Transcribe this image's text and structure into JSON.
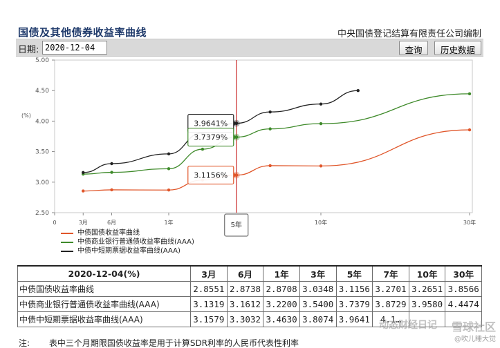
{
  "header": {
    "title": "国债及其他债券收益率曲线",
    "publisher": "中央国债登记结算有限责任公司编制"
  },
  "toolbar": {
    "date_label": "日期:",
    "date_value": "2020-12-04",
    "query_label": "查询",
    "history_label": "历史数据"
  },
  "chart_data": {
    "type": "line",
    "ylabel": "(%)",
    "ylim": [
      2.5,
      5.0
    ],
    "yticks": [
      "5.00",
      "4.50",
      "4.00",
      "3.50",
      "3.00",
      "2.50"
    ],
    "xlim": [
      0,
      30.5
    ],
    "xticks": [
      {
        "x": 0,
        "label": "0"
      },
      {
        "x": 0.25,
        "label": "3月"
      },
      {
        "x": 0.5,
        "label": "6月"
      },
      {
        "x": 1,
        "label": "1年"
      },
      {
        "x": 10,
        "label": "10年"
      },
      {
        "x": 30,
        "label": "30年"
      }
    ],
    "cursor": {
      "x": 5,
      "label": "5年"
    },
    "tooltips": [
      "3.9641%",
      "3.7379%",
      "3.1156%"
    ],
    "series": [
      {
        "name": "中债国债收益率曲线",
        "color": "#e0562a",
        "marker_x": [
          0.25,
          0.5,
          1,
          3,
          5,
          7,
          10,
          30
        ],
        "marker_y": [
          2.8551,
          2.8738,
          2.8708,
          3.0348,
          3.1156,
          3.2701,
          3.2651,
          3.8566
        ]
      },
      {
        "name": "中债商业银行普通债收益率曲线(AAA)",
        "color": "#3e8a2a",
        "marker_x": [
          0.25,
          0.5,
          1,
          3,
          5,
          7,
          10,
          30
        ],
        "marker_y": [
          3.1319,
          3.1612,
          3.22,
          3.54,
          3.7379,
          3.8729,
          3.958,
          4.4474
        ]
      },
      {
        "name": "中债中短期票据收益率曲线(AAA)",
        "color": "#222222",
        "marker_x": [
          0.25,
          0.5,
          1,
          3,
          5,
          7,
          10,
          15
        ],
        "marker_y": [
          3.1579,
          3.3032,
          3.463,
          3.8074,
          3.9641,
          4.15,
          4.28,
          4.5
        ]
      }
    ]
  },
  "table": {
    "headers": [
      "2020-12-04(%)",
      "3月",
      "6月",
      "1年",
      "3年",
      "5年",
      "7年",
      "10年",
      "30年"
    ],
    "rows": [
      {
        "name": "中债国债收益率曲线",
        "values": [
          "2.8551",
          "2.8738",
          "2.8708",
          "3.0348",
          "3.1156",
          "3.2701",
          "3.2651",
          "3.8566"
        ]
      },
      {
        "name": "中债商业银行普通债收益率曲线(AAA)",
        "values": [
          "3.1319",
          "3.1612",
          "3.2200",
          "3.5400",
          "3.7379",
          "3.8729",
          "3.9580",
          "4.4474"
        ]
      },
      {
        "name": "中债中短期票据收益率曲线(AAA)",
        "values": [
          "3.1579",
          "3.3032",
          "3.4630",
          "3.8074",
          "3.9641",
          "4.1…",
          "",
          ""
        ]
      }
    ]
  },
  "note": {
    "label": "注:",
    "text": "表中三个月期限国债收益率是用于计算SDR利率的人民币代表性利率"
  },
  "watermark": {
    "big": "雪球社区",
    "small": "@吹儿睡大觉",
    "center": "动态财经日记"
  }
}
